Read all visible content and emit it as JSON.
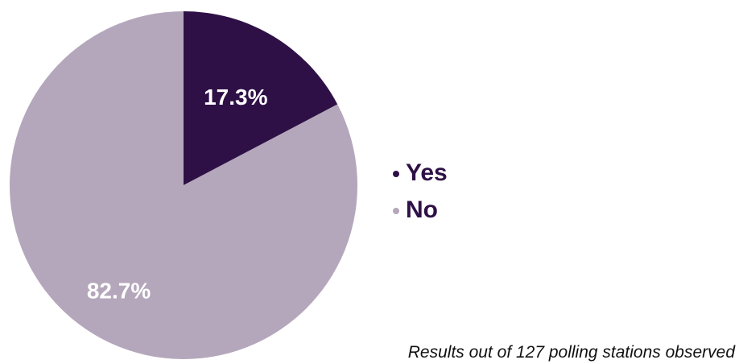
{
  "chart_data": {
    "type": "pie",
    "series": [
      {
        "name": "Yes",
        "value": 17.3,
        "label": "17.3%",
        "color": "#2e1046"
      },
      {
        "name": "No",
        "value": 82.7,
        "label": "82.7%",
        "color": "#b4a7bb"
      }
    ],
    "legend": {
      "placement": "right"
    },
    "note": "Results out of 127 polling stations observed"
  }
}
